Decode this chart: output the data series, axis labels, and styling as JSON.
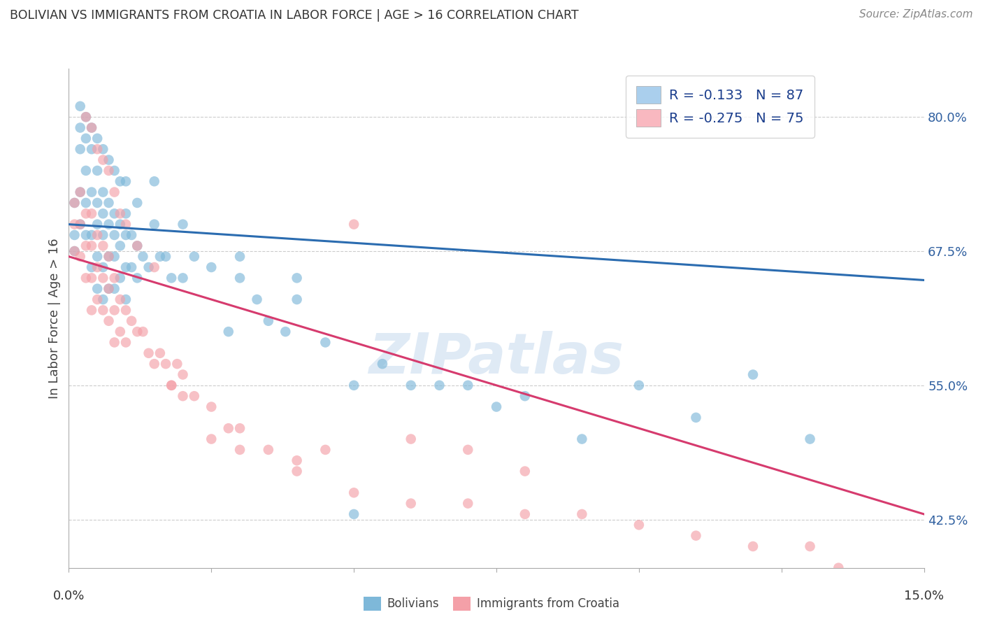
{
  "title": "BOLIVIAN VS IMMIGRANTS FROM CROATIA IN LABOR FORCE | AGE > 16 CORRELATION CHART",
  "source": "Source: ZipAtlas.com",
  "ylabel": "In Labor Force | Age > 16",
  "ytick_labels": [
    "42.5%",
    "55.0%",
    "67.5%",
    "80.0%"
  ],
  "ytick_values": [
    0.425,
    0.55,
    0.675,
    0.8
  ],
  "xmin": 0.0,
  "xmax": 0.15,
  "ymin": 0.38,
  "ymax": 0.845,
  "blue_color": "#7eb8d9",
  "pink_color": "#f4a0a8",
  "blue_line_color": "#2b6cb0",
  "pink_line_color": "#d63b6e",
  "legend_blue_label_r": "R = -0.133",
  "legend_blue_label_n": "N = 87",
  "legend_pink_label_r": "R = -0.275",
  "legend_pink_label_n": "N = 75",
  "legend_blue_box": "#aacfed",
  "legend_pink_box": "#f9b8c0",
  "watermark": "ZIPatlas",
  "watermark_color": "#c5d9ee",
  "legend_label1": "Bolivians",
  "legend_label2": "Immigrants from Croatia",
  "blue_trend_y0": 0.7,
  "blue_trend_y1": 0.648,
  "pink_trend_y0": 0.67,
  "pink_trend_y1": 0.43,
  "blue_scatter_x": [
    0.001,
    0.001,
    0.001,
    0.002,
    0.002,
    0.002,
    0.002,
    0.003,
    0.003,
    0.003,
    0.003,
    0.004,
    0.004,
    0.004,
    0.004,
    0.005,
    0.005,
    0.005,
    0.005,
    0.005,
    0.006,
    0.006,
    0.006,
    0.006,
    0.006,
    0.007,
    0.007,
    0.007,
    0.007,
    0.008,
    0.008,
    0.008,
    0.008,
    0.009,
    0.009,
    0.009,
    0.01,
    0.01,
    0.01,
    0.01,
    0.011,
    0.011,
    0.012,
    0.012,
    0.013,
    0.014,
    0.015,
    0.016,
    0.017,
    0.018,
    0.02,
    0.022,
    0.025,
    0.028,
    0.03,
    0.033,
    0.035,
    0.038,
    0.04,
    0.045,
    0.05,
    0.055,
    0.06,
    0.065,
    0.07,
    0.075,
    0.08,
    0.09,
    0.1,
    0.11,
    0.12,
    0.13,
    0.002,
    0.003,
    0.004,
    0.005,
    0.006,
    0.007,
    0.008,
    0.009,
    0.01,
    0.012,
    0.015,
    0.02,
    0.03,
    0.04,
    0.05
  ],
  "blue_scatter_y": [
    0.675,
    0.69,
    0.72,
    0.77,
    0.79,
    0.73,
    0.7,
    0.78,
    0.75,
    0.72,
    0.69,
    0.77,
    0.73,
    0.69,
    0.66,
    0.75,
    0.72,
    0.7,
    0.67,
    0.64,
    0.73,
    0.71,
    0.69,
    0.66,
    0.63,
    0.72,
    0.7,
    0.67,
    0.64,
    0.71,
    0.69,
    0.67,
    0.64,
    0.7,
    0.68,
    0.65,
    0.71,
    0.69,
    0.66,
    0.63,
    0.69,
    0.66,
    0.68,
    0.65,
    0.67,
    0.66,
    0.7,
    0.67,
    0.67,
    0.65,
    0.65,
    0.67,
    0.66,
    0.6,
    0.65,
    0.63,
    0.61,
    0.6,
    0.63,
    0.59,
    0.55,
    0.57,
    0.55,
    0.55,
    0.55,
    0.53,
    0.54,
    0.5,
    0.55,
    0.52,
    0.56,
    0.5,
    0.81,
    0.8,
    0.79,
    0.78,
    0.77,
    0.76,
    0.75,
    0.74,
    0.74,
    0.72,
    0.74,
    0.7,
    0.67,
    0.65,
    0.43
  ],
  "pink_scatter_x": [
    0.001,
    0.001,
    0.001,
    0.002,
    0.002,
    0.002,
    0.003,
    0.003,
    0.003,
    0.004,
    0.004,
    0.004,
    0.004,
    0.005,
    0.005,
    0.005,
    0.006,
    0.006,
    0.006,
    0.007,
    0.007,
    0.007,
    0.008,
    0.008,
    0.008,
    0.009,
    0.009,
    0.01,
    0.01,
    0.011,
    0.012,
    0.013,
    0.014,
    0.015,
    0.016,
    0.017,
    0.018,
    0.019,
    0.02,
    0.022,
    0.025,
    0.028,
    0.03,
    0.035,
    0.04,
    0.045,
    0.05,
    0.06,
    0.07,
    0.08,
    0.003,
    0.004,
    0.005,
    0.006,
    0.007,
    0.008,
    0.009,
    0.01,
    0.012,
    0.015,
    0.018,
    0.02,
    0.025,
    0.03,
    0.04,
    0.05,
    0.06,
    0.07,
    0.08,
    0.09,
    0.1,
    0.11,
    0.12,
    0.13,
    0.135
  ],
  "pink_scatter_y": [
    0.675,
    0.7,
    0.72,
    0.73,
    0.7,
    0.67,
    0.71,
    0.68,
    0.65,
    0.71,
    0.68,
    0.65,
    0.62,
    0.69,
    0.66,
    0.63,
    0.68,
    0.65,
    0.62,
    0.67,
    0.64,
    0.61,
    0.65,
    0.62,
    0.59,
    0.63,
    0.6,
    0.62,
    0.59,
    0.61,
    0.6,
    0.6,
    0.58,
    0.57,
    0.58,
    0.57,
    0.55,
    0.57,
    0.56,
    0.54,
    0.53,
    0.51,
    0.51,
    0.49,
    0.48,
    0.49,
    0.7,
    0.5,
    0.49,
    0.47,
    0.8,
    0.79,
    0.77,
    0.76,
    0.75,
    0.73,
    0.71,
    0.7,
    0.68,
    0.66,
    0.55,
    0.54,
    0.5,
    0.49,
    0.47,
    0.45,
    0.44,
    0.44,
    0.43,
    0.43,
    0.42,
    0.41,
    0.4,
    0.4,
    0.38
  ]
}
